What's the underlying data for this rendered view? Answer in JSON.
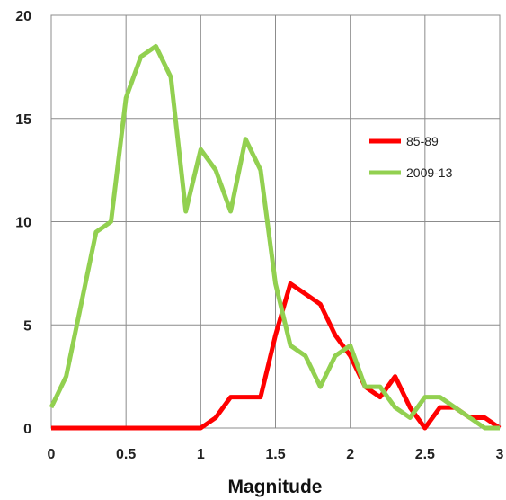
{
  "chart_data": {
    "type": "line",
    "title": "",
    "xlabel": "Magnitude",
    "ylabel": "",
    "xlim": [
      0,
      3
    ],
    "ylim": [
      0,
      20
    ],
    "grid": true,
    "legend_position": "right",
    "x_ticks": [
      "0",
      "0.5",
      "1",
      "1.5",
      "2",
      "2.5",
      "3"
    ],
    "y_ticks": [
      "0",
      "5",
      "10",
      "15",
      "20"
    ],
    "x": [
      0,
      0.1,
      0.2,
      0.3,
      0.4,
      0.5,
      0.6,
      0.7,
      0.8,
      0.9,
      1.0,
      1.1,
      1.2,
      1.3,
      1.4,
      1.5,
      1.6,
      1.7,
      1.8,
      1.9,
      2.0,
      2.1,
      2.2,
      2.3,
      2.4,
      2.5,
      2.6,
      2.7,
      2.8,
      2.9,
      3.0
    ],
    "series": [
      {
        "name": "85-89",
        "color": "#ff0000",
        "values": [
          0,
          0,
          0,
          0,
          0,
          0,
          0,
          0,
          0,
          0,
          0,
          0.5,
          1.5,
          1.5,
          1.5,
          4.5,
          7,
          6.5,
          6,
          4.5,
          3.5,
          2,
          1.5,
          2.5,
          1,
          0,
          1,
          1,
          0.5,
          0.5,
          0
        ]
      },
      {
        "name": "2009-13",
        "color": "#92d050",
        "values": [
          1,
          2.5,
          6,
          9.5,
          10,
          16,
          18,
          18.5,
          17,
          10.5,
          13.5,
          12.5,
          10.5,
          14,
          12.5,
          7,
          4,
          3.5,
          2,
          3.5,
          4,
          2,
          2,
          1,
          0.5,
          1.5,
          1.5,
          1,
          0.5,
          0,
          0
        ]
      }
    ]
  }
}
